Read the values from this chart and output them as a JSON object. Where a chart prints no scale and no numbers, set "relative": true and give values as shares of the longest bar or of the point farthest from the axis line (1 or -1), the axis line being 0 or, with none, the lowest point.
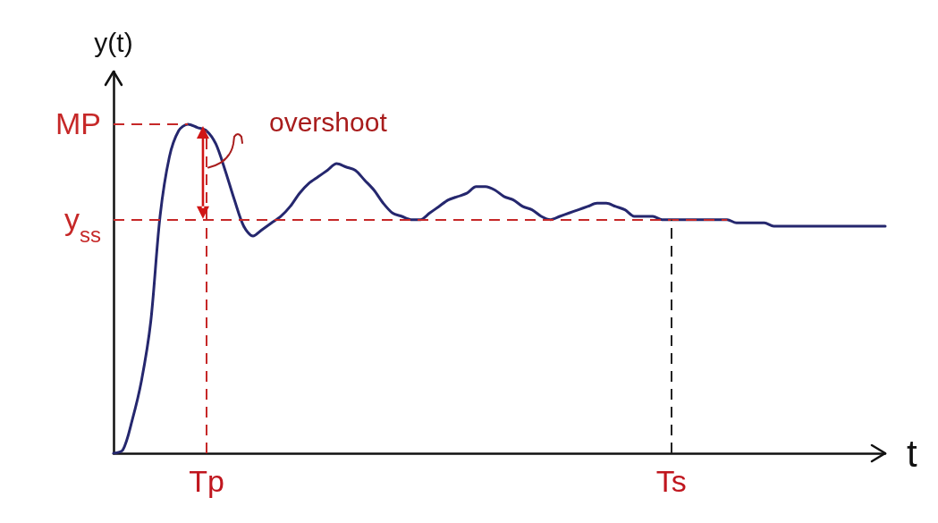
{
  "chart_data": {
    "type": "line",
    "relative": true,
    "xlabel": "t",
    "ylabel": "y(t)",
    "color": "#25276e",
    "categories": [
      null,
      null,
      null,
      null,
      null,
      null,
      null,
      null,
      null,
      null,
      "Tp",
      null,
      null,
      null,
      null,
      null,
      null,
      null,
      null,
      null,
      null,
      null,
      null,
      null,
      null,
      null,
      null,
      null,
      null,
      null,
      null,
      null,
      null,
      null,
      null,
      null,
      null,
      null,
      null,
      null,
      null,
      null,
      null,
      null,
      null,
      null,
      null,
      null,
      null,
      null,
      null,
      null,
      null,
      null,
      null,
      null,
      null,
      null,
      null,
      null,
      "Ts",
      null,
      null,
      null,
      null,
      null,
      null,
      null,
      null,
      null,
      null,
      null,
      null,
      null,
      null,
      null,
      null,
      null,
      null,
      null,
      null,
      null,
      null,
      null
    ],
    "values": [
      0,
      0.01,
      0.1,
      0.22,
      0.4,
      0.72,
      0.9,
      0.98,
      1,
      0.99,
      0.98,
      0.94,
      0.86,
      0.77,
      0.69,
      0.66,
      0.68,
      0.7,
      0.72,
      0.75,
      0.79,
      0.82,
      0.84,
      0.86,
      0.88,
      0.87,
      0.86,
      0.83,
      0.8,
      0.76,
      0.73,
      0.72,
      0.71,
      0.71,
      0.73,
      0.75,
      0.77,
      0.78,
      0.79,
      0.81,
      0.81,
      0.8,
      0.78,
      0.77,
      0.75,
      0.74,
      0.72,
      0.71,
      0.72,
      0.73,
      0.74,
      0.75,
      0.76,
      0.76,
      0.75,
      0.74,
      0.72,
      0.72,
      0.72,
      0.71,
      0.71,
      0.71,
      0.71,
      0.71,
      0.71,
      0.71,
      0.71,
      0.7,
      0.7,
      0.7,
      0.7,
      0.69,
      0.69,
      0.69,
      0.69,
      0.69,
      0.69,
      0.69,
      0.69,
      0.69,
      0.69,
      0.69,
      0.69,
      0.69
    ],
    "ref_lines": [
      {
        "axis": "y",
        "value": 1,
        "label": "MP",
        "color": "#c62828",
        "line_style": "dashed"
      },
      {
        "axis": "y",
        "value": 0.71,
        "label": "y$_{ss}$",
        "color": "#c62828",
        "line_style": "dashed"
      },
      {
        "axis": "x",
        "value": "Tp",
        "color": "#c62828",
        "line_style": "dashed"
      },
      {
        "axis": "x",
        "value": "Ts",
        "color": "#222222",
        "line_style": "dashed"
      }
    ],
    "annotations": [
      {
        "text": "overshoot",
        "x": "Tp",
        "y": 1
      }
    ]
  }
}
